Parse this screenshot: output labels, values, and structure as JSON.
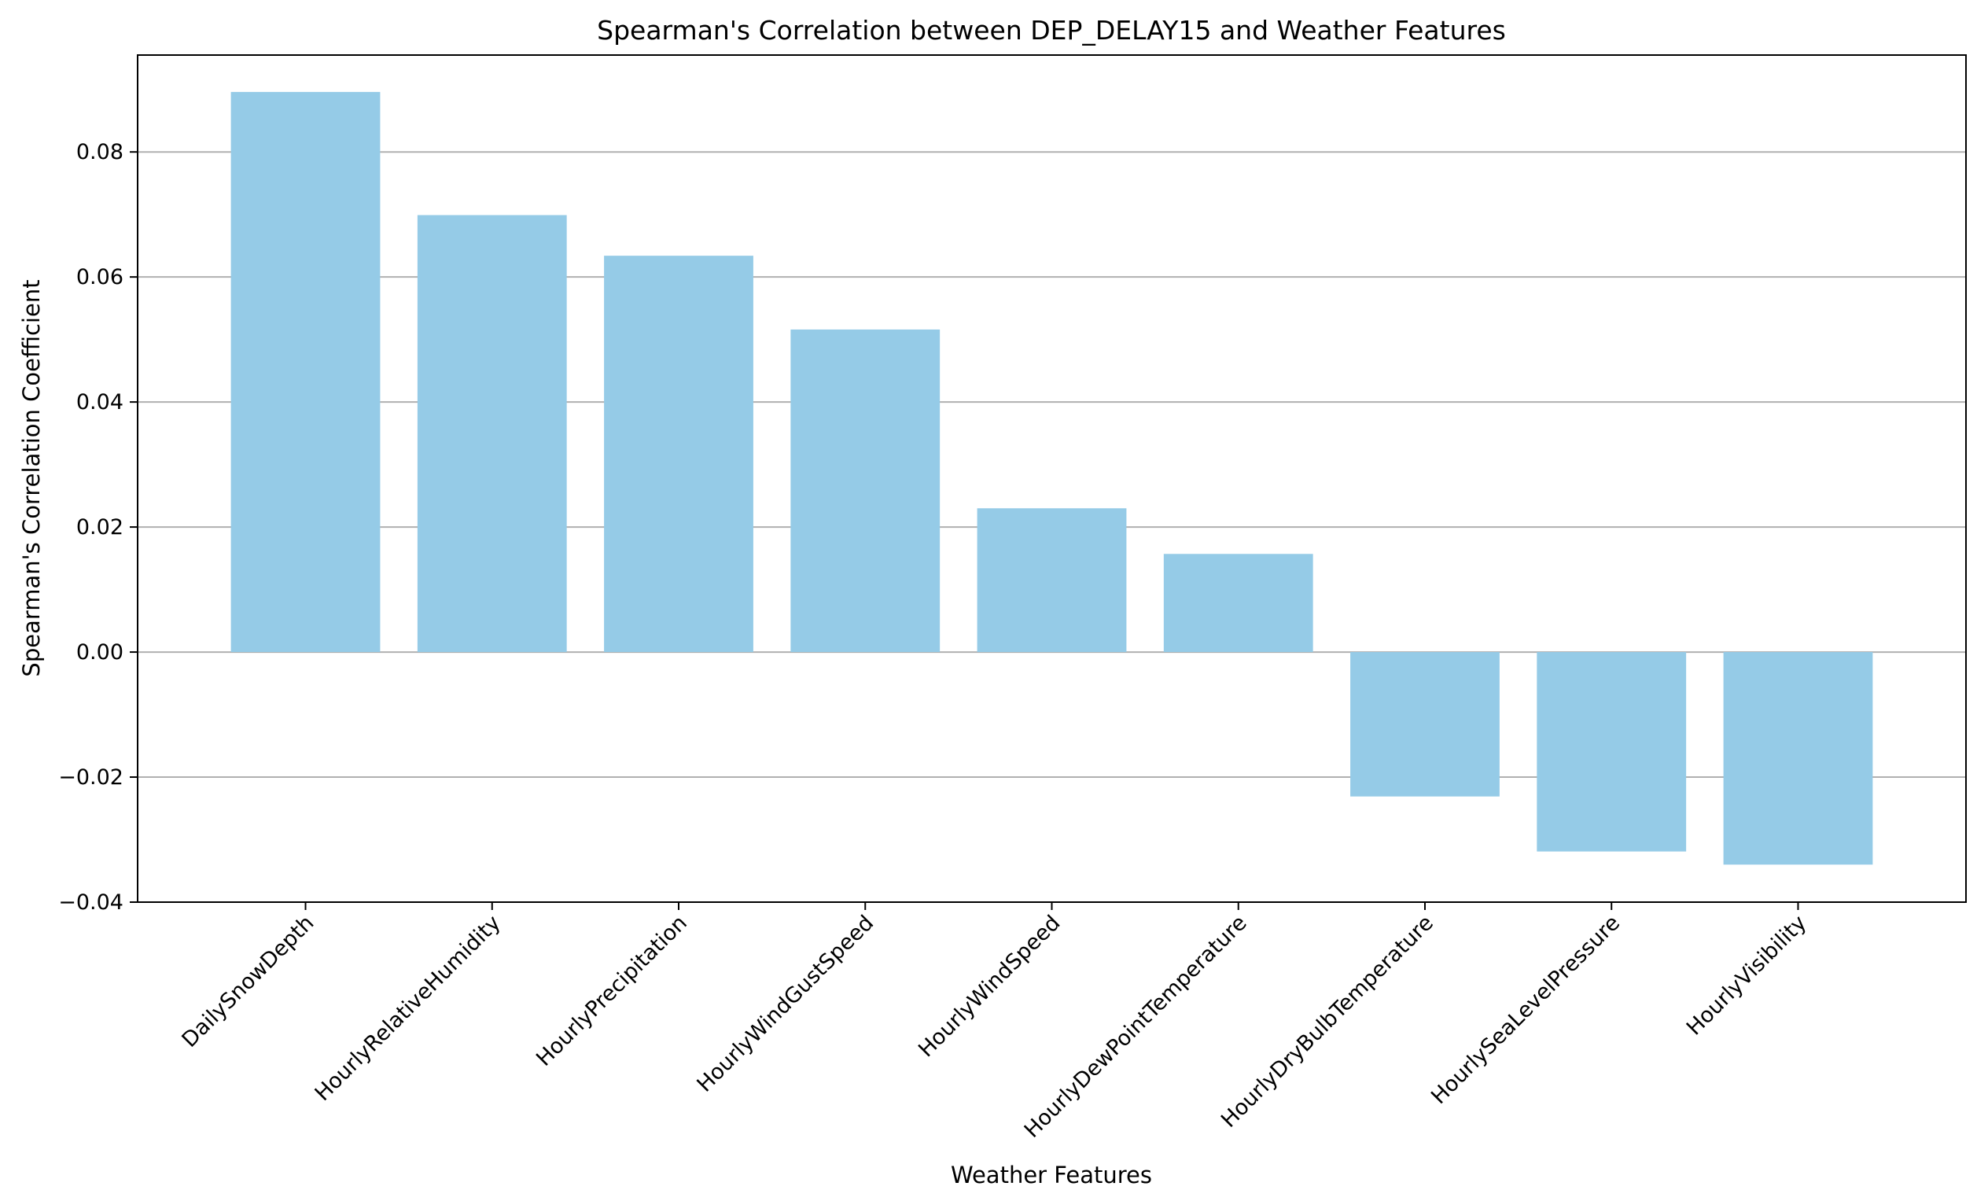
{
  "chart_data": {
    "type": "bar",
    "title": "Spearman's Correlation between DEP_DELAY15 and Weather Features",
    "xlabel": "Weather Features",
    "ylabel": "Spearman's Correlation Coefficient",
    "categories": [
      "DailySnowDepth",
      "HourlyRelativeHumidity",
      "HourlyPrecipitation",
      "HourlyWindGustSpeed",
      "HourlyWindSpeed",
      "HourlyDewPointTemperature",
      "HourlyDryBulbTemperature",
      "HourlySeaLevelPressure",
      "HourlyVisibility"
    ],
    "values": [
      0.0896,
      0.0699,
      0.0634,
      0.0516,
      0.023,
      0.0157,
      -0.0231,
      -0.0319,
      -0.034
    ],
    "ylim": [
      -0.04,
      0.0955
    ],
    "yticks": [
      -0.04,
      -0.02,
      0.0,
      0.02,
      0.04,
      0.06,
      0.08
    ],
    "ytick_labels": [
      "−0.04",
      "−0.02",
      "0.00",
      "0.02",
      "0.04",
      "0.06",
      "0.08"
    ],
    "grid": "horizontal",
    "legend": "none",
    "bar_color": "#95cbe7",
    "grid_color": "#b0b0b0"
  }
}
